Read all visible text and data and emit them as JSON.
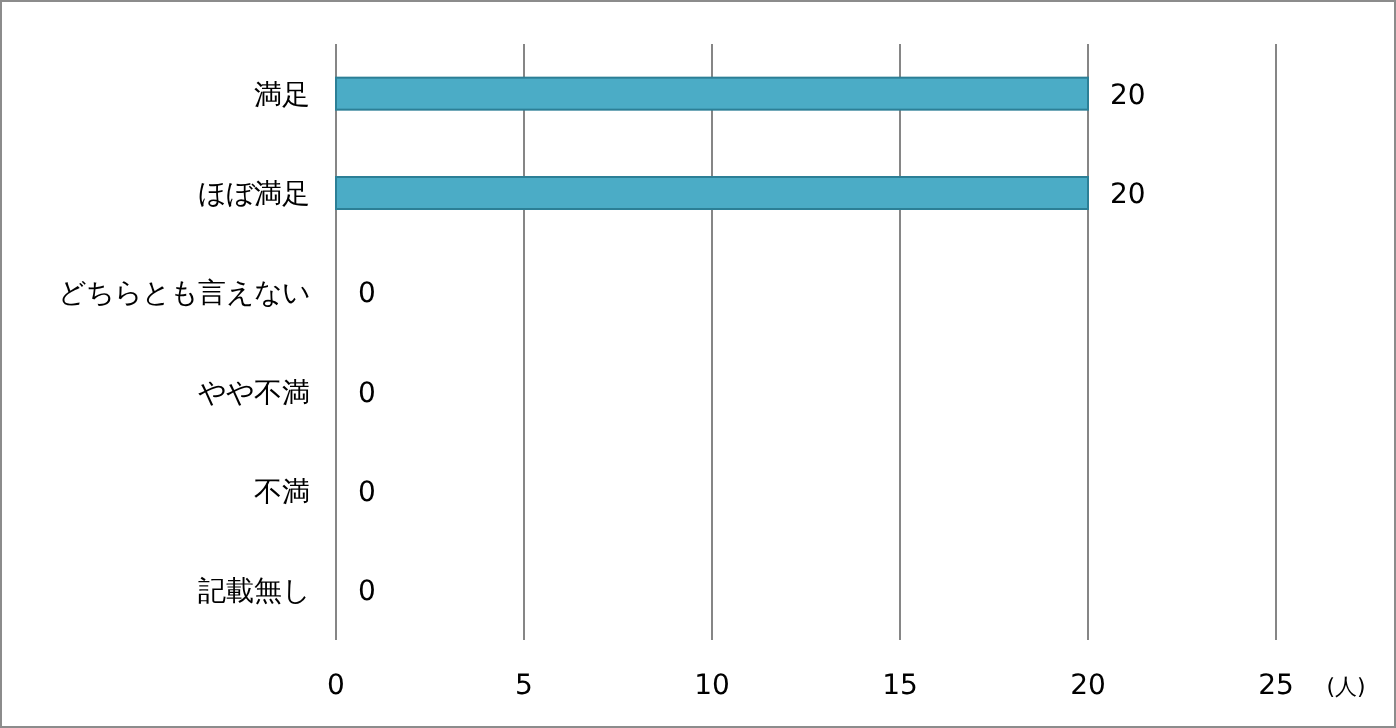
{
  "chart_data": {
    "type": "bar",
    "orientation": "horizontal",
    "categories": [
      "満足",
      "ほぼ満足",
      "どちらとも言えない",
      "やや不満",
      "不満",
      "記載無し"
    ],
    "values": [
      20,
      20,
      0,
      0,
      0,
      0
    ],
    "color": "#4bacc6",
    "xlim": [
      0,
      25
    ],
    "xticks": [
      0,
      5,
      10,
      15,
      20,
      25
    ],
    "xlabel": "(人)",
    "grid": "x",
    "data_labels": true
  }
}
